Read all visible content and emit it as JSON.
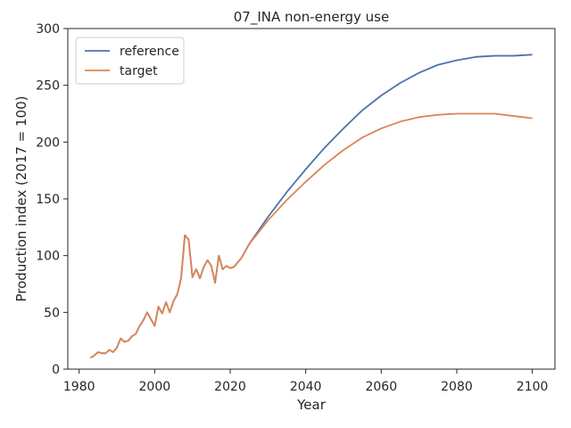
{
  "chart_data": {
    "type": "line",
    "title": "07_INA non-energy use",
    "xlabel": "Year",
    "ylabel": "Production index (2017 = 100)",
    "xlim": [
      1977,
      2106
    ],
    "ylim": [
      0,
      300
    ],
    "xticks": [
      1980,
      2000,
      2020,
      2040,
      2060,
      2080,
      2100
    ],
    "yticks": [
      0,
      50,
      100,
      150,
      200,
      250,
      300
    ],
    "grid": false,
    "legend_position": "top-left",
    "series": [
      {
        "name": "reference",
        "color": "#4c72b0",
        "x": [
          1983,
          1984,
          1985,
          1986,
          1987,
          1988,
          1989,
          1990,
          1991,
          1992,
          1993,
          1994,
          1995,
          1996,
          1997,
          1998,
          1999,
          2000,
          2001,
          2002,
          2003,
          2004,
          2005,
          2006,
          2007,
          2008,
          2009,
          2010,
          2011,
          2012,
          2013,
          2014,
          2015,
          2016,
          2017,
          2018,
          2019,
          2020,
          2021,
          2022,
          2023,
          2024,
          2025,
          2030,
          2035,
          2040,
          2045,
          2050,
          2055,
          2060,
          2065,
          2070,
          2075,
          2080,
          2085,
          2090,
          2095,
          2100
        ],
        "y": [
          10,
          12,
          15,
          14,
          14,
          17,
          15,
          19,
          27,
          24,
          25,
          29,
          31,
          38,
          43,
          50,
          44,
          38,
          55,
          49,
          59,
          50,
          60,
          66,
          80,
          118,
          114,
          81,
          88,
          80,
          90,
          96,
          91,
          76,
          100,
          88,
          91,
          89,
          90,
          94,
          98,
          104,
          110,
          134,
          156,
          176,
          195,
          212,
          228,
          241,
          252,
          261,
          268,
          272,
          275,
          276,
          276,
          277
        ]
      },
      {
        "name": "target",
        "color": "#dd8452",
        "x": [
          1983,
          1984,
          1985,
          1986,
          1987,
          1988,
          1989,
          1990,
          1991,
          1992,
          1993,
          1994,
          1995,
          1996,
          1997,
          1998,
          1999,
          2000,
          2001,
          2002,
          2003,
          2004,
          2005,
          2006,
          2007,
          2008,
          2009,
          2010,
          2011,
          2012,
          2013,
          2014,
          2015,
          2016,
          2017,
          2018,
          2019,
          2020,
          2021,
          2022,
          2023,
          2024,
          2025,
          2030,
          2035,
          2040,
          2045,
          2050,
          2055,
          2060,
          2065,
          2070,
          2075,
          2080,
          2085,
          2090,
          2095,
          2100
        ],
        "y": [
          10,
          12,
          15,
          14,
          14,
          17,
          15,
          19,
          27,
          24,
          25,
          29,
          31,
          38,
          43,
          50,
          44,
          38,
          55,
          49,
          59,
          50,
          60,
          66,
          80,
          118,
          114,
          81,
          88,
          80,
          90,
          96,
          91,
          76,
          100,
          88,
          91,
          89,
          90,
          94,
          98,
          104,
          110,
          131,
          149,
          165,
          180,
          193,
          204,
          212,
          218,
          222,
          224,
          225,
          225,
          225,
          223,
          221
        ]
      }
    ]
  }
}
